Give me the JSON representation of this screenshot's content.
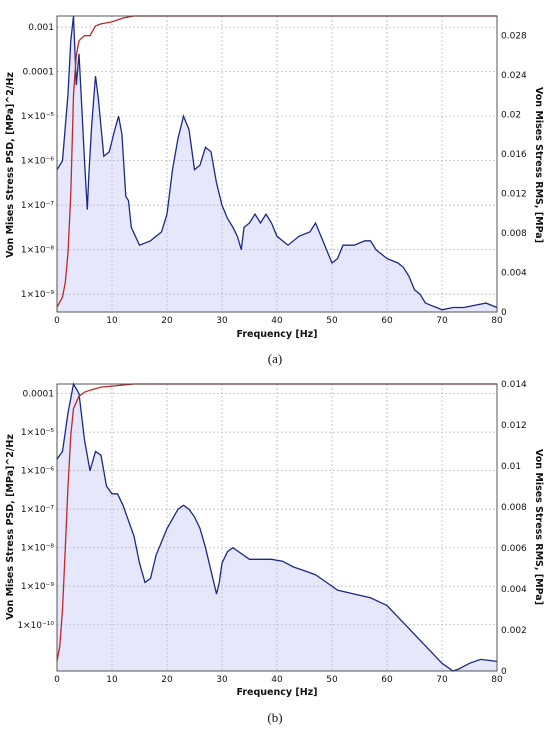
{
  "chart_data": [
    {
      "type": "line",
      "caption": "(a)",
      "xlabel": "Frequency [Hz]",
      "ylabel": "Von Mises Stress PSD, [MPa]^2/Hz",
      "y2label": "Von Mises Stress RMS, [MPa]",
      "xlim": [
        0,
        80
      ],
      "x_ticks": [
        0,
        10,
        20,
        30,
        40,
        50,
        60,
        70,
        80
      ],
      "y_scale": "log",
      "ylim_log10": [
        -9.4,
        -2.75
      ],
      "y_ticks": [
        {
          "exp": -3,
          "label": "0.001"
        },
        {
          "exp": -4,
          "label": "0.0001"
        },
        {
          "exp": -5,
          "label": "1×10⁻⁵"
        },
        {
          "exp": -6,
          "label": "1×10⁻⁶"
        },
        {
          "exp": -7,
          "label": "1×10⁻⁷"
        },
        {
          "exp": -8,
          "label": "1×10⁻⁸"
        },
        {
          "exp": -9,
          "label": "1×10⁻⁹"
        }
      ],
      "y2lim": [
        0,
        0.03
      ],
      "y2_ticks": [
        "0",
        "0.004",
        "0.008",
        "0.012",
        "0.016",
        "0.02",
        "0.024",
        "0.028"
      ],
      "grid": true,
      "series": [
        {
          "role": "psd",
          "axis": "left",
          "color": "#1a2a8a",
          "points": [
            [
              0,
              -6.2
            ],
            [
              1,
              -6.0
            ],
            [
              2,
              -4.5
            ],
            [
              2.5,
              -3.3
            ],
            [
              3,
              -2.75
            ],
            [
              3.5,
              -4.3
            ],
            [
              4,
              -3.6
            ],
            [
              4.5,
              -4.8
            ],
            [
              5,
              -6.0
            ],
            [
              5.5,
              -7.1
            ],
            [
              5.8,
              -6.3
            ],
            [
              6.3,
              -5.2
            ],
            [
              7,
              -4.1
            ],
            [
              7.5,
              -4.6
            ],
            [
              8.5,
              -5.9
            ],
            [
              9.5,
              -5.8
            ],
            [
              10.5,
              -5.3
            ],
            [
              11.2,
              -5.0
            ],
            [
              11.8,
              -5.4
            ],
            [
              12.5,
              -6.8
            ],
            [
              13,
              -6.9
            ],
            [
              13.5,
              -7.5
            ],
            [
              15,
              -7.9
            ],
            [
              17,
              -7.8
            ],
            [
              19,
              -7.6
            ],
            [
              20,
              -7.2
            ],
            [
              21,
              -6.2
            ],
            [
              22,
              -5.5
            ],
            [
              23,
              -5.0
            ],
            [
              24,
              -5.3
            ],
            [
              25,
              -6.2
            ],
            [
              26,
              -6.1
            ],
            [
              27,
              -5.7
            ],
            [
              28,
              -5.8
            ],
            [
              29,
              -6.5
            ],
            [
              30,
              -7.0
            ],
            [
              31,
              -7.3
            ],
            [
              32,
              -7.5
            ],
            [
              32.8,
              -7.7
            ],
            [
              33.5,
              -8.0
            ],
            [
              34,
              -7.5
            ],
            [
              35,
              -7.4
            ],
            [
              36,
              -7.2
            ],
            [
              37,
              -7.4
            ],
            [
              38,
              -7.2
            ],
            [
              39,
              -7.4
            ],
            [
              40,
              -7.7
            ],
            [
              42,
              -7.9
            ],
            [
              44,
              -7.7
            ],
            [
              46,
              -7.6
            ],
            [
              47,
              -7.4
            ],
            [
              48,
              -7.7
            ],
            [
              50,
              -8.3
            ],
            [
              51,
              -8.2
            ],
            [
              52,
              -7.9
            ],
            [
              54,
              -7.9
            ],
            [
              56,
              -7.8
            ],
            [
              57,
              -7.8
            ],
            [
              58,
              -8.0
            ],
            [
              60,
              -8.2
            ],
            [
              62,
              -8.3
            ],
            [
              63,
              -8.4
            ],
            [
              64,
              -8.6
            ],
            [
              65,
              -8.9
            ],
            [
              66,
              -9.0
            ],
            [
              67,
              -9.2
            ],
            [
              68,
              -9.25
            ],
            [
              69,
              -9.3
            ],
            [
              70,
              -9.35
            ],
            [
              72,
              -9.3
            ],
            [
              74,
              -9.3
            ],
            [
              76,
              -9.25
            ],
            [
              78,
              -9.2
            ],
            [
              80,
              -9.3
            ]
          ]
        },
        {
          "role": "rms",
          "axis": "right",
          "color": "#c0282a",
          "points": [
            [
              0,
              0.0005
            ],
            [
              1,
              0.0015
            ],
            [
              1.5,
              0.003
            ],
            [
              2,
              0.006
            ],
            [
              2.5,
              0.012
            ],
            [
              3,
              0.022
            ],
            [
              3.5,
              0.026
            ],
            [
              4,
              0.0275
            ],
            [
              5,
              0.028
            ],
            [
              6,
              0.028
            ],
            [
              7,
              0.029
            ],
            [
              8,
              0.0292
            ],
            [
              10,
              0.0294
            ],
            [
              12,
              0.0298
            ],
            [
              14,
              0.03
            ],
            [
              30,
              0.03
            ],
            [
              80,
              0.03
            ]
          ]
        }
      ]
    },
    {
      "type": "line",
      "caption": "(b)",
      "xlabel": "Frequency [Hz]",
      "ylabel": "Von Mises Stress PSD, [MPa]^2/Hz",
      "y2label": "Von Mises Stress RMS, [MPa]",
      "xlim": [
        0,
        80
      ],
      "x_ticks": [
        0,
        10,
        20,
        30,
        40,
        50,
        60,
        70,
        80
      ],
      "y_scale": "log",
      "ylim_log10": [
        -11.2,
        -3.75
      ],
      "y_ticks": [
        {
          "exp": -4,
          "label": "0.0001"
        },
        {
          "exp": -5,
          "label": "1×10⁻⁵"
        },
        {
          "exp": -6,
          "label": "1×10⁻⁶"
        },
        {
          "exp": -7,
          "label": "1×10⁻⁷"
        },
        {
          "exp": -8,
          "label": "1×10⁻⁸"
        },
        {
          "exp": -9,
          "label": "1×10⁻⁹"
        },
        {
          "exp": -10,
          "label": "1×10⁻¹⁰"
        }
      ],
      "y2lim": [
        0,
        0.014
      ],
      "y2_ticks": [
        "0",
        "0.002",
        "0.004",
        "0.006",
        "0.008",
        "0.01",
        "0.012",
        "0.014"
      ],
      "grid": true,
      "series": [
        {
          "role": "psd",
          "axis": "left",
          "color": "#1a2a8a",
          "points": [
            [
              0,
              -5.7
            ],
            [
              1,
              -5.5
            ],
            [
              2,
              -4.5
            ],
            [
              3,
              -3.75
            ],
            [
              4,
              -4.0
            ],
            [
              5,
              -5.2
            ],
            [
              6,
              -6.0
            ],
            [
              7,
              -5.5
            ],
            [
              8,
              -5.6
            ],
            [
              9,
              -6.4
            ],
            [
              10,
              -6.6
            ],
            [
              11,
              -6.6
            ],
            [
              12,
              -6.9
            ],
            [
              14,
              -7.7
            ],
            [
              15,
              -8.4
            ],
            [
              16,
              -8.9
            ],
            [
              17,
              -8.8
            ],
            [
              18,
              -8.2
            ],
            [
              20,
              -7.5
            ],
            [
              22,
              -7.0
            ],
            [
              23,
              -6.9
            ],
            [
              24,
              -7.0
            ],
            [
              25,
              -7.2
            ],
            [
              26,
              -7.5
            ],
            [
              27,
              -8.0
            ],
            [
              28,
              -8.6
            ],
            [
              29,
              -9.2
            ],
            [
              29.5,
              -8.9
            ],
            [
              30,
              -8.4
            ],
            [
              31,
              -8.1
            ],
            [
              32,
              -8.0
            ],
            [
              33,
              -8.1
            ],
            [
              35,
              -8.3
            ],
            [
              37,
              -8.3
            ],
            [
              39,
              -8.3
            ],
            [
              41,
              -8.35
            ],
            [
              43,
              -8.5
            ],
            [
              45,
              -8.6
            ],
            [
              47,
              -8.7
            ],
            [
              49,
              -8.9
            ],
            [
              51,
              -9.1
            ],
            [
              54,
              -9.2
            ],
            [
              57,
              -9.3
            ],
            [
              60,
              -9.5
            ],
            [
              62,
              -9.8
            ],
            [
              64,
              -10.1
            ],
            [
              66,
              -10.4
            ],
            [
              68,
              -10.7
            ],
            [
              70,
              -11.0
            ],
            [
              72,
              -11.2
            ],
            [
              73,
              -11.15
            ],
            [
              75,
              -11.0
            ],
            [
              77,
              -10.9
            ],
            [
              80,
              -10.95
            ]
          ]
        },
        {
          "role": "rms",
          "axis": "right",
          "color": "#c0282a",
          "points": [
            [
              0,
              0.0005
            ],
            [
              0.5,
              0.0012
            ],
            [
              1,
              0.003
            ],
            [
              1.5,
              0.006
            ],
            [
              2,
              0.009
            ],
            [
              2.5,
              0.0115
            ],
            [
              3,
              0.0128
            ],
            [
              4,
              0.0134
            ],
            [
              5,
              0.0136
            ],
            [
              6,
              0.0137
            ],
            [
              8,
              0.01385
            ],
            [
              10,
              0.0139
            ],
            [
              14,
              0.014
            ],
            [
              80,
              0.014
            ]
          ]
        }
      ]
    }
  ]
}
